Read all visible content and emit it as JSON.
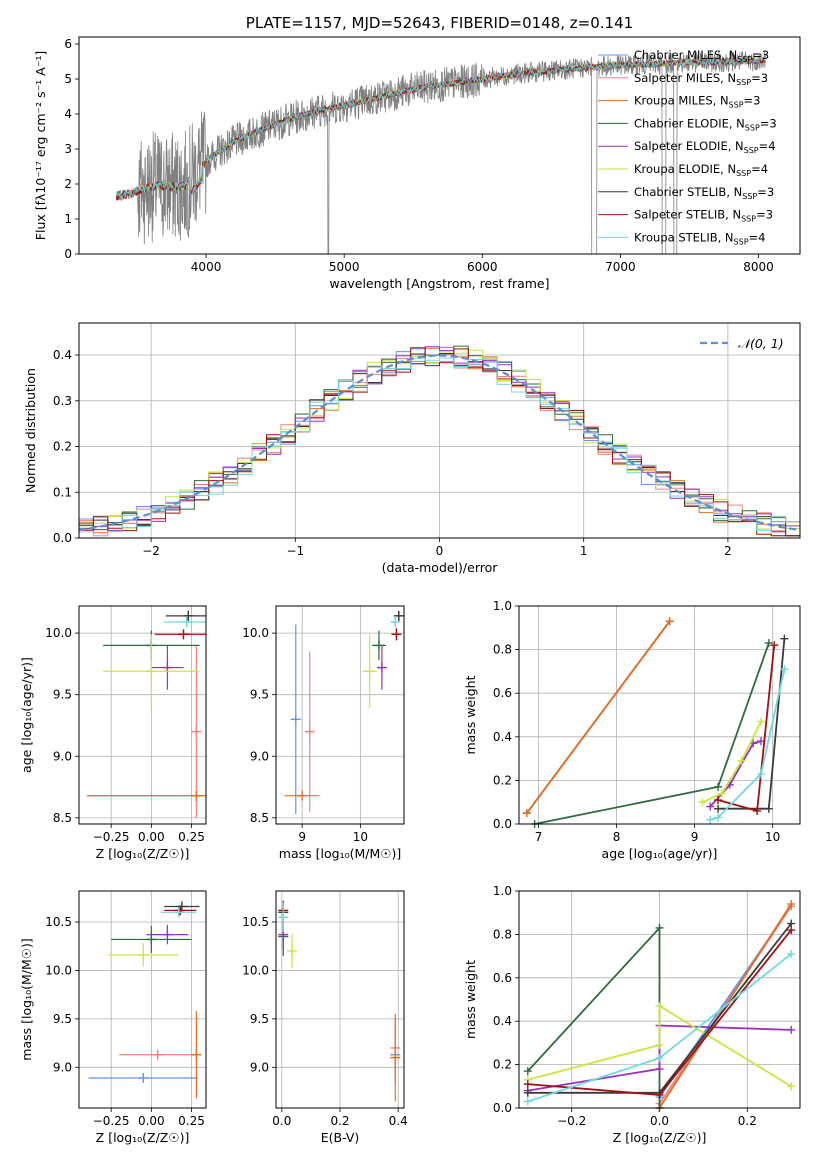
{
  "colors": {
    "chabrier_miles": "#6495ED",
    "salpeter_miles": "#F08080",
    "kroupa_miles": "#E07020",
    "chabrier_elodie": "#2E6B3E",
    "salpeter_elodie": "#9B30C0",
    "kroupa_elodie": "#C8E640",
    "chabrier_stelib": "#3A3A3A",
    "salpeter_stelib": "#A01010",
    "kroupa_stelib": "#70D8E0",
    "data": "#808080",
    "normal": "#5B8DD9",
    "grid": "#b0b0b0"
  },
  "chart_data": [
    {
      "id": "spectrum",
      "type": "line",
      "title": "PLATE=1157, MJD=52643, FIBERID=0148, z=0.141",
      "xlabel": "wavelength [Angstrom, rest frame]",
      "ylabel": "Flux [fλ10⁻¹⁷ erg cm⁻² s⁻¹ A⁻¹]",
      "xlim": [
        3080,
        8300
      ],
      "ylim": [
        0,
        6.2
      ],
      "xticks": [
        4000,
        5000,
        6000,
        7000,
        8000
      ],
      "yticks": [
        0,
        1,
        2,
        3,
        4,
        5,
        6
      ],
      "grid": false,
      "legend_position": "upper-right",
      "continuum": [
        [
          3350,
          1.65
        ],
        [
          3450,
          1.72
        ],
        [
          3550,
          1.88
        ],
        [
          3650,
          1.95
        ],
        [
          3750,
          1.92
        ],
        [
          3850,
          1.95
        ],
        [
          3950,
          2.45
        ],
        [
          4050,
          2.82
        ],
        [
          4200,
          3.2
        ],
        [
          4400,
          3.55
        ],
        [
          4600,
          3.85
        ],
        [
          4800,
          4.08
        ],
        [
          5000,
          4.25
        ],
        [
          5200,
          4.42
        ],
        [
          5400,
          4.62
        ],
        [
          5600,
          4.78
        ],
        [
          5800,
          4.88
        ],
        [
          6000,
          5.0
        ],
        [
          6200,
          5.12
        ],
        [
          6400,
          5.2
        ],
        [
          6600,
          5.28
        ],
        [
          6800,
          5.34
        ],
        [
          7000,
          5.4
        ],
        [
          7200,
          5.42
        ],
        [
          7400,
          5.46
        ],
        [
          7600,
          5.48
        ],
        [
          7800,
          5.5
        ],
        [
          8000,
          5.52
        ],
        [
          8050,
          5.55
        ]
      ],
      "legend": [
        {
          "label_main": "Chabrier MILES, N",
          "label_sub": "SSP",
          "label_tail": "=3",
          "color_key": "chabrier_miles"
        },
        {
          "label_main": "Salpeter MILES, N",
          "label_sub": "SSP",
          "label_tail": "=3",
          "color_key": "salpeter_miles"
        },
        {
          "label_main": "Kroupa MILES, N",
          "label_sub": "SSP",
          "label_tail": "=3",
          "color_key": "kroupa_miles"
        },
        {
          "label_main": "Chabrier ELODIE, N",
          "label_sub": "SSP",
          "label_tail": "=3",
          "color_key": "chabrier_elodie"
        },
        {
          "label_main": "Salpeter ELODIE, N",
          "label_sub": "SSP",
          "label_tail": "=4",
          "color_key": "salpeter_elodie"
        },
        {
          "label_main": "Kroupa ELODIE, N",
          "label_sub": "SSP",
          "label_tail": "=4",
          "color_key": "kroupa_elodie"
        },
        {
          "label_main": "Chabrier STELIB, N",
          "label_sub": "SSP",
          "label_tail": "=3",
          "color_key": "chabrier_stelib"
        },
        {
          "label_main": "Salpeter STELIB, N",
          "label_sub": "SSP",
          "label_tail": "=3",
          "color_key": "salpeter_stelib"
        },
        {
          "label_main": "Kroupa STELIB, N",
          "label_sub": "SSP",
          "label_tail": "=4",
          "color_key": "kroupa_stelib"
        }
      ]
    },
    {
      "id": "residuals",
      "type": "line",
      "xlabel": "(data-model)/error",
      "ylabel": "Normed distribution",
      "xlim": [
        -2.5,
        2.5
      ],
      "ylim": [
        0,
        0.47
      ],
      "xticks": [
        -2,
        -1,
        0,
        1,
        2
      ],
      "ytick_values": [
        0.0,
        0.1,
        0.2,
        0.3,
        0.4
      ],
      "ytick_labels": [
        "0.0",
        "0.1",
        "0.2",
        "0.3",
        "0.4"
      ],
      "xtick_labels": [
        "−2",
        "−1",
        "0",
        "1",
        "2"
      ],
      "grid": true,
      "legend_position": "upper-right",
      "legend_label": "𝒩(0, 1)",
      "bin_width": 0.1
    },
    {
      "id": "age_vs_z",
      "type": "scatter",
      "xlabel": "Z [log₁₀(Z/Z☉)]",
      "ylabel": "age  [log₁₀(age/yr)]",
      "xlim": [
        -0.45,
        0.34
      ],
      "ylim": [
        8.45,
        10.22
      ],
      "xticks": [
        -0.25,
        0.0,
        0.25
      ],
      "xtick_labels": [
        "−0.25",
        "0.00",
        "0.25"
      ],
      "yticks": [
        8.5,
        9.0,
        9.5,
        10.0
      ],
      "ytick_labels": [
        "8.5",
        "9.0",
        "9.5",
        "10.0"
      ],
      "grid": true,
      "points": [
        {
          "color_key": "chabrier_miles",
          "x": 0.28,
          "xerr": 0.68,
          "y": 8.68,
          "yerr": 0.0
        },
        {
          "color_key": "salpeter_miles",
          "x": 0.28,
          "xerr": 0.0,
          "y": 9.2,
          "yerr": 0.7
        },
        {
          "color_key": "kroupa_miles",
          "x": 0.28,
          "xerr": 0.68,
          "y": 8.68,
          "yerr": 0.0
        },
        {
          "color_key": "chabrier_elodie",
          "x": 0.0,
          "xerr": 0.3,
          "y": 9.9,
          "yerr": 0.12
        },
        {
          "color_key": "salpeter_elodie",
          "x": 0.1,
          "xerr": 0.1,
          "y": 9.72,
          "yerr": 0.18
        },
        {
          "color_key": "kroupa_elodie",
          "x": 0.0,
          "xerr": 0.3,
          "y": 9.69,
          "yerr": 0.3
        },
        {
          "color_key": "chabrier_stelib",
          "x": 0.23,
          "xerr": 0.14,
          "y": 10.14,
          "yerr": 0.04
        },
        {
          "color_key": "salpeter_stelib",
          "x": 0.2,
          "xerr": 0.18,
          "y": 9.99,
          "yerr": 0.02
        },
        {
          "color_key": "kroupa_stelib",
          "x": 0.22,
          "xerr": 0.14,
          "y": 10.09,
          "yerr": 0.04
        }
      ]
    },
    {
      "id": "age_vs_mass",
      "type": "scatter",
      "xlabel": "mass [log₁₀(M/M☉)]",
      "xlim": [
        8.55,
        10.75
      ],
      "ylim": [
        8.45,
        10.22
      ],
      "xticks": [
        9,
        10
      ],
      "yticks": [
        8.5,
        9.0,
        9.5,
        10.0
      ],
      "ytick_labels": [
        "8.5",
        "9.0",
        "9.5",
        "10.0"
      ],
      "grid": true,
      "points": [
        {
          "color_key": "chabrier_miles",
          "x": 8.89,
          "xerr": 0.0,
          "y": 9.3,
          "yerr": 0.77
        },
        {
          "color_key": "salpeter_miles",
          "x": 9.13,
          "xerr": 0.0,
          "y": 9.2,
          "yerr": 0.65
        },
        {
          "color_key": "kroupa_miles",
          "x": 9.0,
          "xerr": 0.3,
          "y": 8.68,
          "yerr": 0.0
        },
        {
          "color_key": "chabrier_elodie",
          "x": 10.32,
          "xerr": 0.12,
          "y": 9.9,
          "yerr": 0.12
        },
        {
          "color_key": "salpeter_elodie",
          "x": 10.37,
          "xerr": 0.07,
          "y": 9.72,
          "yerr": 0.18
        },
        {
          "color_key": "kroupa_elodie",
          "x": 10.16,
          "xerr": 0.12,
          "y": 9.69,
          "yerr": 0.3
        },
        {
          "color_key": "chabrier_stelib",
          "x": 10.66,
          "xerr": 0.06,
          "y": 10.14,
          "yerr": 0.04
        },
        {
          "color_key": "salpeter_stelib",
          "x": 10.62,
          "xerr": 0.05,
          "y": 9.99,
          "yerr": 0.05
        },
        {
          "color_key": "kroupa_stelib",
          "x": 10.6,
          "xerr": 0.05,
          "y": 10.09,
          "yerr": 0.04
        }
      ]
    },
    {
      "id": "weight_vs_age",
      "type": "line",
      "xlabel": "age  [log₁₀(age/yr)]",
      "ylabel": "mass weight",
      "xlim": [
        6.75,
        10.35
      ],
      "ylim": [
        0,
        1.0
      ],
      "xticks": [
        7,
        8,
        9,
        10
      ],
      "yticks": [
        0.0,
        0.2,
        0.4,
        0.6,
        0.8,
        1.0
      ],
      "ytick_labels": [
        "0.0",
        "0.2",
        "0.4",
        "0.6",
        "0.8",
        "1.0"
      ],
      "grid": true,
      "series": [
        {
          "color_key": "chabrier_miles",
          "x": [
            6.85,
            8.68
          ],
          "y": [
            0.05,
            0.93
          ]
        },
        {
          "color_key": "salpeter_miles",
          "x": [
            6.85,
            8.68
          ],
          "y": [
            0.05,
            0.93
          ]
        },
        {
          "color_key": "kroupa_miles",
          "x": [
            6.85,
            8.68
          ],
          "y": [
            0.05,
            0.93
          ]
        },
        {
          "color_key": "chabrier_elodie",
          "x": [
            6.95,
            9.3,
            9.95
          ],
          "y": [
            0.0,
            0.17,
            0.83
          ]
        },
        {
          "color_key": "salpeter_elodie",
          "x": [
            9.2,
            9.45,
            9.75,
            9.85
          ],
          "y": [
            0.08,
            0.18,
            0.37,
            0.38
          ]
        },
        {
          "color_key": "kroupa_elodie",
          "x": [
            9.1,
            9.35,
            9.6,
            9.85
          ],
          "y": [
            0.1,
            0.14,
            0.29,
            0.47
          ]
        },
        {
          "color_key": "chabrier_stelib",
          "x": [
            9.3,
            9.95,
            10.15
          ],
          "y": [
            0.07,
            0.07,
            0.85
          ]
        },
        {
          "color_key": "salpeter_stelib",
          "x": [
            9.3,
            9.8,
            10.02
          ],
          "y": [
            0.11,
            0.06,
            0.82
          ]
        },
        {
          "color_key": "kroupa_stelib",
          "x": [
            9.2,
            9.3,
            9.85,
            10.15
          ],
          "y": [
            0.02,
            0.03,
            0.23,
            0.71
          ]
        }
      ]
    },
    {
      "id": "mass_vs_z",
      "type": "scatter",
      "xlabel": "Z [log₁₀(Z/Z☉)]",
      "ylabel": "mass [log₁₀(M/M☉)]",
      "xlim": [
        -0.45,
        0.34
      ],
      "ylim": [
        8.58,
        10.82
      ],
      "xticks": [
        -0.25,
        0.0,
        0.25
      ],
      "xtick_labels": [
        "−0.25",
        "0.00",
        "0.25"
      ],
      "yticks": [
        9.0,
        9.5,
        10.0,
        10.5
      ],
      "ytick_labels": [
        "9.0",
        "9.5",
        "10.0",
        "10.5"
      ],
      "grid": true,
      "points": [
        {
          "color_key": "chabrier_miles",
          "x": -0.05,
          "xerr": 0.34,
          "y": 8.89,
          "yerr": 0.0
        },
        {
          "color_key": "salpeter_miles",
          "x": 0.04,
          "xerr": 0.24,
          "y": 9.13,
          "yerr": 0.0
        },
        {
          "color_key": "kroupa_miles",
          "x": 0.28,
          "xerr": 0.0,
          "y": 9.13,
          "yerr": 0.45
        },
        {
          "color_key": "chabrier_elodie",
          "x": 0.0,
          "xerr": 0.25,
          "y": 10.32,
          "yerr": 0.14
        },
        {
          "color_key": "salpeter_elodie",
          "x": 0.1,
          "xerr": 0.13,
          "y": 10.37,
          "yerr": 0.1
        },
        {
          "color_key": "kroupa_elodie",
          "x": -0.05,
          "xerr": 0.22,
          "y": 10.16,
          "yerr": 0.12
        },
        {
          "color_key": "chabrier_stelib",
          "x": 0.19,
          "xerr": 0.11,
          "y": 10.66,
          "yerr": 0.05
        },
        {
          "color_key": "salpeter_stelib",
          "x": 0.18,
          "xerr": 0.1,
          "y": 10.62,
          "yerr": 0.04
        },
        {
          "color_key": "kroupa_stelib",
          "x": 0.17,
          "xerr": 0.11,
          "y": 10.6,
          "yerr": 0.05
        }
      ]
    },
    {
      "id": "mass_vs_ebv",
      "type": "scatter",
      "xlabel": "E(B-V)",
      "xlim": [
        -0.02,
        0.42
      ],
      "ylim": [
        8.58,
        10.82
      ],
      "xticks": [
        0.0,
        0.2,
        0.4
      ],
      "xtick_labels": [
        "0.0",
        "0.2",
        "0.4"
      ],
      "yticks": [
        9.0,
        9.5,
        10.0,
        10.5
      ],
      "ytick_labels": [
        "9.0",
        "9.5",
        "10.0",
        "10.5"
      ],
      "grid": true,
      "points": [
        {
          "color_key": "chabrier_miles",
          "x": 0.39,
          "xerr": 0.0,
          "y": 9.13,
          "yerr": 0.3
        },
        {
          "color_key": "salpeter_miles",
          "x": 0.39,
          "xerr": 0.0,
          "y": 9.2,
          "yerr": 0.3
        },
        {
          "color_key": "kroupa_miles",
          "x": 0.39,
          "xerr": 0.0,
          "y": 9.1,
          "yerr": 0.45
        },
        {
          "color_key": "chabrier_elodie",
          "x": 0.005,
          "xerr": 0.0,
          "y": 10.35,
          "yerr": 0.2
        },
        {
          "color_key": "salpeter_elodie",
          "x": 0.005,
          "xerr": 0.0,
          "y": 10.37,
          "yerr": 0.15
        },
        {
          "color_key": "kroupa_elodie",
          "x": 0.035,
          "xerr": 0.0,
          "y": 10.2,
          "yerr": 0.18
        },
        {
          "color_key": "chabrier_stelib",
          "x": 0.005,
          "xerr": 0.0,
          "y": 10.6,
          "yerr": 0.1
        },
        {
          "color_key": "salpeter_stelib",
          "x": 0.005,
          "xerr": 0.0,
          "y": 10.62,
          "yerr": 0.1
        },
        {
          "color_key": "kroupa_stelib",
          "x": 0.005,
          "xerr": 0.0,
          "y": 10.55,
          "yerr": 0.15
        }
      ]
    },
    {
      "id": "weight_vs_z",
      "type": "line",
      "xlabel": "Z [log₁₀(Z/Z☉)]",
      "ylabel": "mass weight",
      "xlim": [
        -0.32,
        0.32
      ],
      "ylim": [
        0,
        1.0
      ],
      "xticks": [
        -0.2,
        0.0,
        0.2
      ],
      "xtick_labels": [
        "−0.2",
        "0.0",
        "0.2"
      ],
      "yticks": [
        0.0,
        0.2,
        0.4,
        0.6,
        0.8,
        1.0
      ],
      "ytick_labels": [
        "0.0",
        "0.2",
        "0.4",
        "0.6",
        "0.8",
        "1.0"
      ],
      "grid": true,
      "series": [
        {
          "color_key": "chabrier_miles",
          "x": [
            0.0,
            0.3
          ],
          "y": [
            0.05,
            0.93
          ]
        },
        {
          "color_key": "salpeter_miles",
          "x": [
            0.0,
            0.3
          ],
          "y": [
            0.02,
            0.93
          ]
        },
        {
          "color_key": "kroupa_miles",
          "x": [
            0.0,
            0.3
          ],
          "y": [
            0.0,
            0.94
          ]
        },
        {
          "color_key": "chabrier_elodie",
          "x": [
            -0.3,
            0.0,
            0.0
          ],
          "y": [
            0.17,
            0.83,
            0.0
          ]
        },
        {
          "color_key": "salpeter_elodie",
          "x": [
            -0.3,
            0.0,
            0.0,
            0.3
          ],
          "y": [
            0.08,
            0.18,
            0.38,
            0.36
          ]
        },
        {
          "color_key": "kroupa_elodie",
          "x": [
            -0.3,
            0.0,
            0.0,
            0.3
          ],
          "y": [
            0.13,
            0.29,
            0.47,
            0.1
          ]
        },
        {
          "color_key": "chabrier_stelib",
          "x": [
            -0.3,
            0.0,
            0.3
          ],
          "y": [
            0.07,
            0.07,
            0.85
          ]
        },
        {
          "color_key": "salpeter_stelib",
          "x": [
            -0.3,
            0.0,
            0.3
          ],
          "y": [
            0.11,
            0.06,
            0.82
          ]
        },
        {
          "color_key": "kroupa_stelib",
          "x": [
            -0.3,
            0.0,
            0.3
          ],
          "y": [
            0.03,
            0.23,
            0.71
          ]
        }
      ]
    }
  ]
}
